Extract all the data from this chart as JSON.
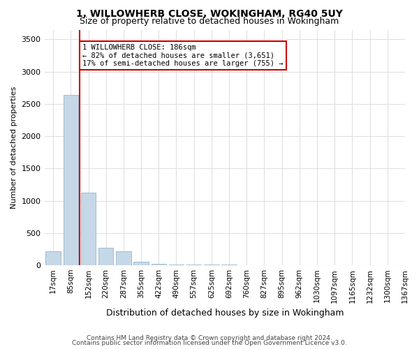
{
  "title": "1, WILLOWHERB CLOSE, WOKINGHAM, RG40 5UY",
  "subtitle": "Size of property relative to detached houses in Wokingham",
  "xlabel": "Distribution of detached houses by size in Wokingham",
  "ylabel": "Number of detached properties",
  "bins": [
    "17sqm",
    "85sqm",
    "152sqm",
    "220sqm",
    "287sqm",
    "355sqm",
    "422sqm",
    "490sqm",
    "557sqm",
    "625sqm",
    "692sqm",
    "760sqm",
    "827sqm",
    "895sqm",
    "962sqm",
    "1030sqm",
    "1097sqm",
    "1165sqm",
    "1232sqm",
    "1300sqm"
  ],
  "values": [
    220,
    2640,
    1120,
    270,
    220,
    55,
    20,
    15,
    12,
    10,
    8,
    6,
    5,
    4,
    3,
    3,
    2,
    2,
    2,
    2
  ],
  "bar_color": "#c5d8e8",
  "bar_edge_color": "#a0bcd0",
  "annotation_text": "1 WILLOWHERB CLOSE: 186sqm\n← 82% of detached houses are smaller (3,651)\n17% of semi-detached houses are larger (755) →",
  "annotation_box_color": "#ffffff",
  "annotation_box_edge": "#cc0000",
  "property_line_color": "#cc0000",
  "property_line_x": 1.5,
  "ylim": [
    0,
    3650
  ],
  "yticks": [
    0,
    500,
    1000,
    1500,
    2000,
    2500,
    3000,
    3500
  ],
  "footer1": "Contains HM Land Registry data © Crown copyright and database right 2024.",
  "footer2": "Contains public sector information licensed under the Open Government Licence v3.0.",
  "bg_color": "#ffffff",
  "grid_color": "#e0e0e0",
  "extra_tick": "1367sqm"
}
